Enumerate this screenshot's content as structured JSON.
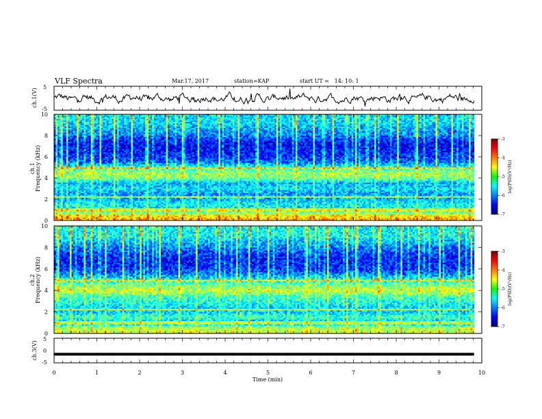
{
  "header": {
    "title": "VLF Spectra",
    "date": "Mar.17, 2017",
    "station": "station=KAP",
    "start_ut": "start UT =   14: 10: 1"
  },
  "chart_data": [
    {
      "name": "ch1-waveform",
      "type": "line",
      "ylabel": "ch.1(V)",
      "yticks": [
        "5",
        "-5"
      ],
      "ylim": [
        -5,
        5
      ],
      "xlim": [
        0,
        10
      ],
      "series": [
        {
          "mean": 0,
          "amplitude": 2,
          "ends_at": 9.82
        }
      ]
    },
    {
      "name": "ch1-spectrogram",
      "type": "heatmap",
      "panel_label": "ch.1",
      "ylabel": "Frequency (kHz)",
      "yticks": [
        "0",
        "2",
        "4",
        "6",
        "8",
        "10"
      ],
      "ylim": [
        0,
        10
      ],
      "xlim": [
        0,
        10
      ],
      "data_ends_at": 9.82,
      "colorbar": {
        "label": "log(PSD)(V²/Hz)",
        "ticks": [
          "-3",
          "-4",
          "-5",
          "-6",
          "-7"
        ],
        "range": [
          -7,
          -3
        ]
      },
      "band_profile": [
        {
          "f": 0.0,
          "v": -4.2
        },
        {
          "f": 0.5,
          "v": -4.5
        },
        {
          "f": 1.0,
          "v": -5.6
        },
        {
          "f": 1.5,
          "v": -5.5
        },
        {
          "f": 2.0,
          "v": -5.8
        },
        {
          "f": 2.5,
          "v": -5.9
        },
        {
          "f": 3.0,
          "v": -5.6
        },
        {
          "f": 3.5,
          "v": -5.8
        },
        {
          "f": 4.0,
          "v": -5.0
        },
        {
          "f": 4.5,
          "v": -4.9
        },
        {
          "f": 5.0,
          "v": -5.4
        },
        {
          "f": 5.5,
          "v": -6.1
        },
        {
          "f": 6.0,
          "v": -6.3
        },
        {
          "f": 6.5,
          "v": -6.4
        },
        {
          "f": 7.0,
          "v": -6.5
        },
        {
          "f": 7.5,
          "v": -6.4
        },
        {
          "f": 8.0,
          "v": -6.0
        },
        {
          "f": 8.5,
          "v": -5.9
        },
        {
          "f": 9.0,
          "v": -5.7
        },
        {
          "f": 9.5,
          "v": -5.6
        },
        {
          "f": 10.0,
          "v": -5.6
        }
      ],
      "impulse_times": [
        0.05,
        0.15,
        0.3,
        0.55,
        0.85,
        1.05,
        1.4,
        1.8,
        2.15,
        2.6,
        3.0,
        3.35,
        3.83,
        4.3,
        4.75,
        5.2,
        5.65,
        6.05,
        6.5,
        7.05,
        7.5,
        8.0,
        8.45,
        8.9,
        9.3,
        9.7
      ]
    },
    {
      "name": "ch2-spectrogram",
      "type": "heatmap",
      "panel_label": "ch.2",
      "ylabel": "Frequency (kHz)",
      "yticks": [
        "0",
        "2",
        "4",
        "6",
        "8",
        "10"
      ],
      "ylim": [
        0,
        10
      ],
      "xlim": [
        0,
        10
      ],
      "data_ends_at": 9.82,
      "colorbar": {
        "label": "log(PSD)(V²/Hz)",
        "ticks": [
          "-3",
          "-4",
          "-5",
          "-6",
          "-7"
        ],
        "range": [
          -7,
          -3
        ]
      },
      "band_profile": [
        {
          "f": 0.0,
          "v": -4.6
        },
        {
          "f": 0.5,
          "v": -4.9
        },
        {
          "f": 1.0,
          "v": -5.8
        },
        {
          "f": 1.5,
          "v": -5.3
        },
        {
          "f": 2.0,
          "v": -5.7
        },
        {
          "f": 2.5,
          "v": -5.6
        },
        {
          "f": 3.0,
          "v": -5.4
        },
        {
          "f": 3.5,
          "v": -5.2
        },
        {
          "f": 4.0,
          "v": -4.7
        },
        {
          "f": 4.5,
          "v": -5.1
        },
        {
          "f": 5.0,
          "v": -5.5
        },
        {
          "f": 5.5,
          "v": -6.0
        },
        {
          "f": 6.0,
          "v": -6.3
        },
        {
          "f": 6.5,
          "v": -6.4
        },
        {
          "f": 7.0,
          "v": -6.4
        },
        {
          "f": 7.5,
          "v": -6.2
        },
        {
          "f": 8.0,
          "v": -6.0
        },
        {
          "f": 8.5,
          "v": -5.8
        },
        {
          "f": 9.0,
          "v": -5.5
        },
        {
          "f": 9.5,
          "v": -5.5
        },
        {
          "f": 10.0,
          "v": -5.5
        }
      ],
      "impulse_times": [
        0.1,
        0.35,
        0.7,
        0.85,
        1.2,
        1.6,
        2.0,
        2.45,
        2.9,
        3.3,
        3.83,
        4.25,
        4.55,
        5.0,
        5.45,
        5.9,
        6.4,
        6.85,
        7.05,
        7.55,
        8.1,
        8.5,
        9.0,
        9.45,
        9.75
      ]
    },
    {
      "name": "ch3-waveform",
      "type": "line",
      "ylabel": "ch.3(V)",
      "yticks": [
        "5",
        "0",
        "-5"
      ],
      "ylim": [
        -5,
        5
      ],
      "xlim": [
        0,
        10
      ],
      "xlabel": "Time (min)",
      "xticks": [
        "0",
        "1",
        "2",
        "3",
        "4",
        "5",
        "6",
        "7",
        "8",
        "9",
        "10"
      ],
      "series": [
        {
          "value": -1.5,
          "ends_at": 9.82
        }
      ]
    }
  ]
}
